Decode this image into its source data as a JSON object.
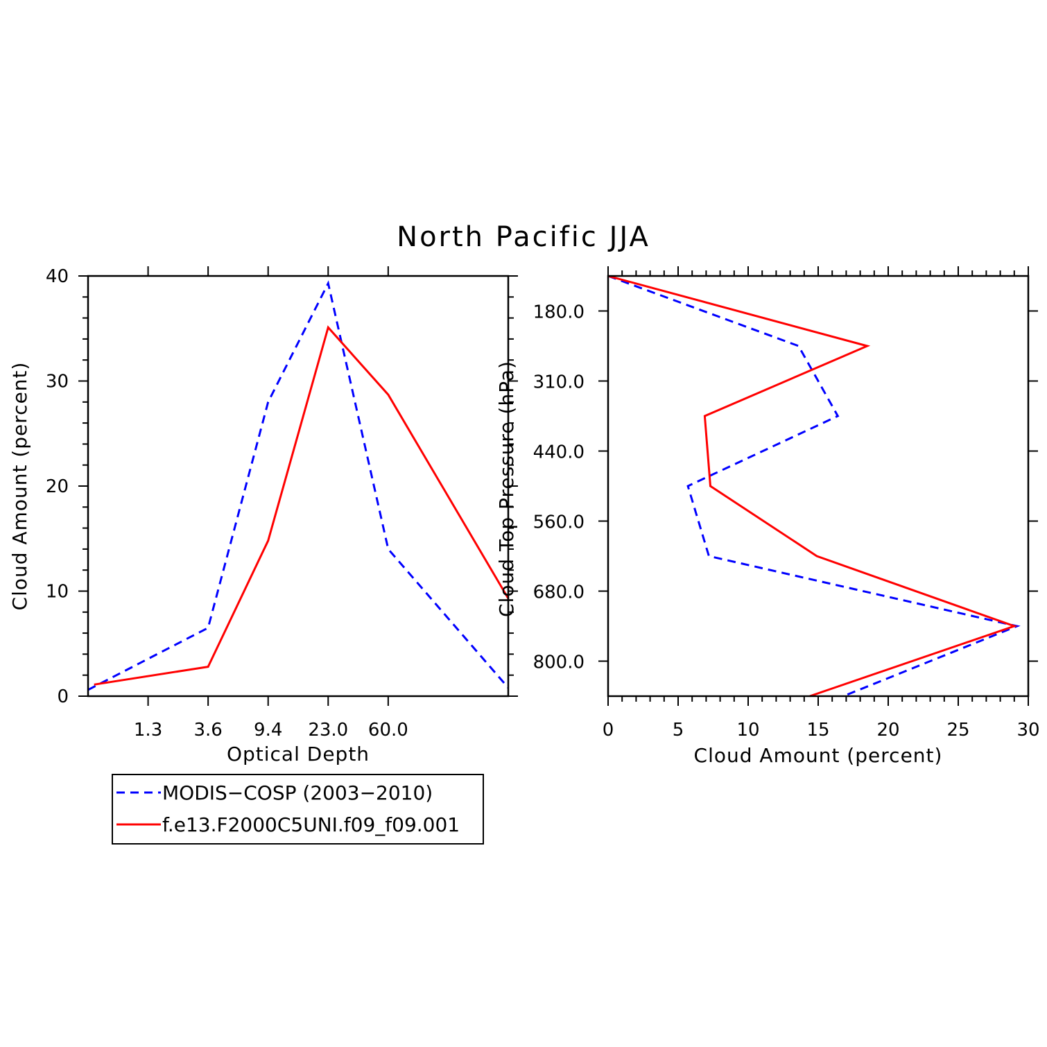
{
  "title": "North Pacific JJA",
  "colors": {
    "series1": "#0000ff",
    "series2": "#ff0000",
    "axis": "#000000"
  },
  "legend": {
    "placement": "below-left",
    "entries": [
      {
        "label": "MODIS−COSP (2003−2010)",
        "color": "#0000ff",
        "dash": "dashed"
      },
      {
        "label": "f.e13.F2000C5UNI.f09_f09.001",
        "color": "#ff0000",
        "dash": "solid"
      }
    ]
  },
  "chart_data": [
    {
      "type": "line",
      "xlabel": "Optical Depth",
      "ylabel": "Cloud Amount (percent)",
      "x_tick_labels": [
        "1.3",
        "3.6",
        "9.4",
        "23.0",
        "60.0"
      ],
      "x_bins": 7,
      "ylim": [
        0,
        40
      ],
      "y_ticks": [
        0,
        10,
        20,
        30,
        40
      ],
      "series": [
        {
          "name": "MODIS−COSP (2003−2010)",
          "values": [
            0.6,
            6.5,
            28.0,
            39.3,
            14.0,
            0.8
          ]
        },
        {
          "name": "f.e13.F2000C5UNI.f09_f09.001",
          "values": [
            1.1,
            2.8,
            14.8,
            35.1,
            28.7,
            9.3
          ]
        }
      ]
    },
    {
      "type": "line",
      "xlabel": "Cloud Amount (percent)",
      "ylabel": "Cloud Top Pressure (hPa)",
      "xlim": [
        0,
        30
      ],
      "x_ticks": [
        0,
        5,
        10,
        15,
        20,
        25,
        30
      ],
      "y_tick_labels": [
        "180.0",
        "310.0",
        "440.0",
        "560.0",
        "680.0",
        "800.0"
      ],
      "y_bins": 6,
      "series": [
        {
          "name": "MODIS−COSP (2003−2010)",
          "values": [
            0.0,
            13.6,
            16.4,
            5.7,
            7.2,
            29.2,
            16.8
          ]
        },
        {
          "name": "f.e13.F2000C5UNI.f09_f09.001",
          "values": [
            0.0,
            18.5,
            6.9,
            7.3,
            14.9,
            29.0,
            14.4
          ]
        }
      ]
    }
  ]
}
